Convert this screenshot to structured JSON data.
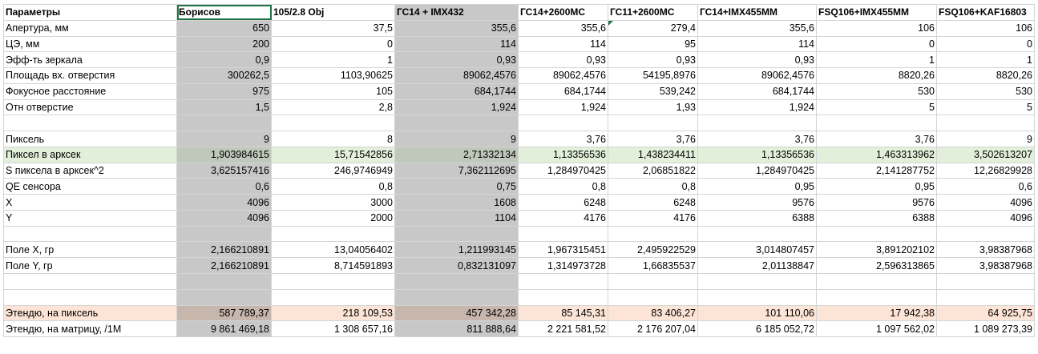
{
  "sheet": {
    "headers": [
      "Параметры",
      "Борисов",
      "105/2.8 Obj",
      "ГС14 + IMX432",
      "ГС14+2600MC",
      "ГС11+2600MC",
      "ГС14+IMX455MM",
      "FSQ106+IMX455MM",
      "FSQ106+KAF16803"
    ],
    "rows": [
      {
        "label": "Апертура, мм",
        "values": [
          "650",
          "37,5",
          "355,6",
          "355,6",
          "279,4",
          "355,6",
          "106",
          "106"
        ]
      },
      {
        "label": "ЦЭ, мм",
        "values": [
          "200",
          "0",
          "114",
          "114",
          "95",
          "114",
          "0",
          "0"
        ]
      },
      {
        "label": "Эфф-ть зеркала",
        "values": [
          "0,9",
          "1",
          "0,93",
          "0,93",
          "0,93",
          "0,93",
          "1",
          "1"
        ]
      },
      {
        "label": "Площадь вх. отверстия",
        "values": [
          "300262,5",
          "1103,90625",
          "89062,4576",
          "89062,4576",
          "54195,8976",
          "89062,4576",
          "8820,26",
          "8820,26"
        ]
      },
      {
        "label": "Фокусное расстояние",
        "values": [
          "975",
          "105",
          "684,1744",
          "684,1744",
          "539,242",
          "684,1744",
          "530",
          "530"
        ]
      },
      {
        "label": "Отн отверстие",
        "values": [
          "1,5",
          "2,8",
          "1,924",
          "1,924",
          "1,93",
          "1,924",
          "5",
          "5"
        ]
      },
      {
        "label": "",
        "values": [
          "",
          "",
          "",
          "",
          "",
          "",
          "",
          ""
        ]
      },
      {
        "label": "Пиксель",
        "values": [
          "9",
          "8",
          "9",
          "3,76",
          "3,76",
          "3,76",
          "3,76",
          "9"
        ]
      },
      {
        "label": "Пиксел в арксек",
        "values": [
          "1,903984615",
          "15,71542856",
          "2,71332134",
          "1,13356536",
          "1,438234411",
          "1,13356536",
          "1,463313962",
          "3,502613207"
        ]
      },
      {
        "label": "S пиксела в арксек^2",
        "values": [
          "3,625157416",
          "246,9746949",
          "7,362112695",
          "1,284970425",
          "2,06851822",
          "1,284970425",
          "2,141287752",
          "12,26829928"
        ]
      },
      {
        "label": "QE сенсора",
        "values": [
          "0,6",
          "0,8",
          "0,75",
          "0,8",
          "0,8",
          "0,95",
          "0,95",
          "0,6"
        ]
      },
      {
        "label": "X",
        "values": [
          "4096",
          "3000",
          "1608",
          "6248",
          "6248",
          "9576",
          "9576",
          "4096"
        ]
      },
      {
        "label": "Y",
        "values": [
          "4096",
          "2000",
          "1104",
          "4176",
          "4176",
          "6388",
          "6388",
          "4096"
        ]
      },
      {
        "label": "",
        "values": [
          "",
          "",
          "",
          "",
          "",
          "",
          "",
          ""
        ]
      },
      {
        "label": "Поле X, гр",
        "values": [
          "2,166210891",
          "13,04056402",
          "1,211993145",
          "1,967315451",
          "2,495922529",
          "3,014807457",
          "3,891202102",
          "3,98387968"
        ]
      },
      {
        "label": "Поле Y, гр",
        "values": [
          "2,166210891",
          "8,714591893",
          "0,832131097",
          "1,314973728",
          "1,66835537",
          "2,01138847",
          "2,596313865",
          "3,98387968"
        ]
      },
      {
        "label": "",
        "values": [
          "",
          "",
          "",
          "",
          "",
          "",
          "",
          ""
        ]
      },
      {
        "label": "",
        "values": [
          "",
          "",
          "",
          "",
          "",
          "",
          "",
          ""
        ]
      },
      {
        "label": "Этендю, на пиксель",
        "values": [
          "587 789,37",
          "218 109,53",
          "457 342,28",
          "85 145,31",
          "83 406,27",
          "101 110,06",
          "17 942,38",
          "64 925,75"
        ]
      },
      {
        "label": "Этендю, на матрицу, /1M",
        "values": [
          "9 861 469,18",
          "1 308 657,16",
          "811 888,64",
          "2 221 581,52",
          "2 176 207,04",
          "6 185 052,72",
          "1 097 562,02",
          "1 089 273,39"
        ]
      }
    ]
  },
  "colors": {
    "grid": "#d4d4d4",
    "shaded_column": "#c8c8c8",
    "highlight_row": "#e2efda",
    "total_row": "#fce4d6",
    "selection": "#217346"
  }
}
